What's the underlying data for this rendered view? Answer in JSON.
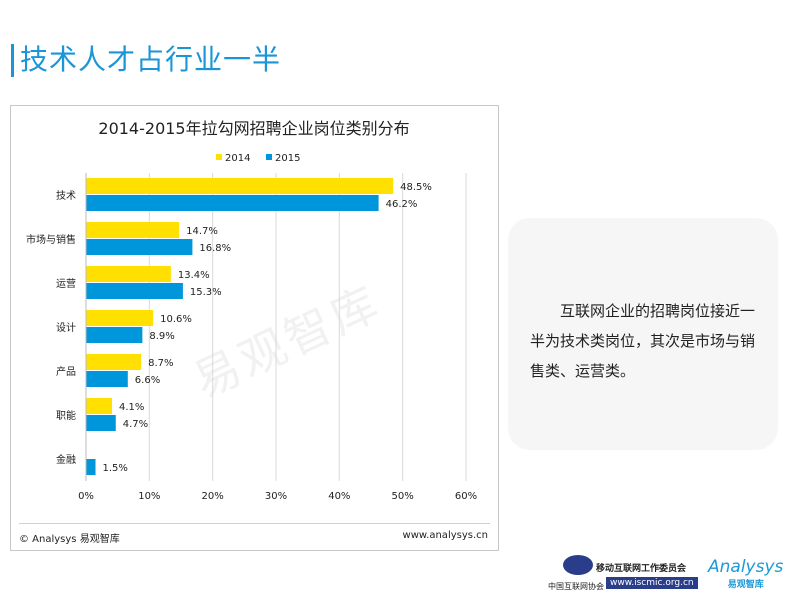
{
  "page_title": "技术人才占行业一半",
  "note": "互联网企业的招聘岗位接近一半为技术类岗位，其次是市场与销售类、运营类。",
  "source_left": "© Analysys 易观智库",
  "source_right": "www.analysys.cn",
  "watermark": "易观智库",
  "logos": {
    "org_name": "移动互联网工作委员会",
    "org_sub": "中国互联网协会",
    "org_url": "www.iscmic.org.cn",
    "brand": "Analysys",
    "brand_cn": "易观智库"
  },
  "chart_data": {
    "type": "bar",
    "orientation": "horizontal",
    "title": "2014-2015年拉勾网招聘企业岗位类别分布",
    "categories": [
      "技术",
      "市场与销售",
      "运营",
      "设计",
      "产品",
      "职能",
      "金融"
    ],
    "series": [
      {
        "name": "2014",
        "color": "#ffe000",
        "values": [
          48.5,
          14.7,
          13.4,
          10.6,
          8.7,
          4.1,
          null
        ]
      },
      {
        "name": "2015",
        "color": "#0096dc",
        "values": [
          46.2,
          16.8,
          15.3,
          8.9,
          6.6,
          4.7,
          1.5
        ]
      }
    ],
    "xlim": [
      0,
      60
    ],
    "xticks": [
      "0%",
      "10%",
      "20%",
      "30%",
      "40%",
      "50%",
      "60%"
    ],
    "grid": true,
    "legend": "top"
  }
}
